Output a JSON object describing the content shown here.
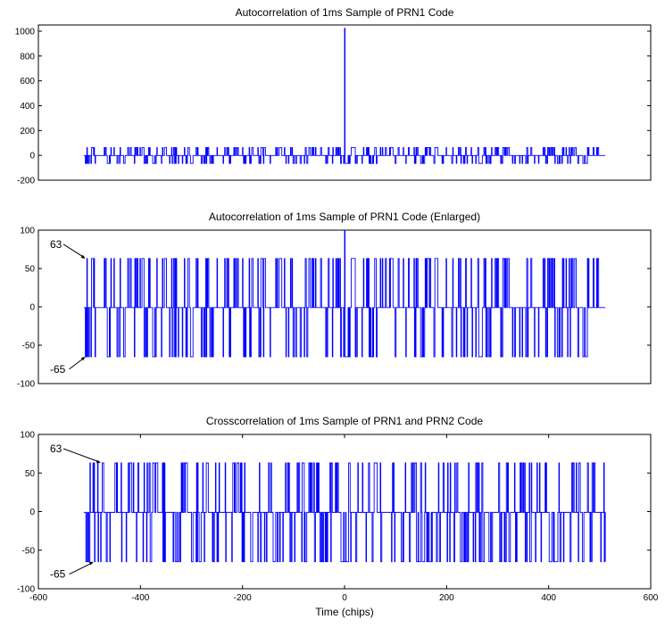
{
  "chart_data": [
    {
      "type": "line",
      "title": "Autocorrelation of 1ms Sample of PRN1 Code",
      "xlabel": "",
      "ylabel": "",
      "xlim": [
        -600,
        600
      ],
      "ylim": [
        -200,
        1050
      ],
      "yticks": [
        -200,
        0,
        200,
        400,
        600,
        800,
        1000
      ],
      "xticks": [],
      "series": [
        {
          "color": "#0000ff",
          "x_range": [
            -511,
            511
          ],
          "peak": {
            "x": 0,
            "y": 1023
          },
          "levels": [
            63,
            -1,
            -65
          ]
        }
      ],
      "annotations": []
    },
    {
      "type": "line",
      "title": "Autocorrelation of 1ms Sample of PRN1 Code (Enlarged)",
      "xlabel": "",
      "ylabel": "",
      "xlim": [
        -600,
        600
      ],
      "ylim": [
        -100,
        100
      ],
      "yticks": [
        -100,
        -50,
        0,
        50,
        100
      ],
      "xticks": [],
      "series": [
        {
          "color": "#0000ff",
          "x_range": [
            -511,
            511
          ],
          "peak": {
            "x": 0,
            "y": 1023
          },
          "levels": [
            63,
            -1,
            -65
          ]
        }
      ],
      "annotations": [
        {
          "text": "63",
          "x": -508,
          "y": 63
        },
        {
          "text": "-65",
          "x": -508,
          "y": -65
        }
      ]
    },
    {
      "type": "line",
      "title": "Crosscorrelation of 1ms Sample of PRN1 and PRN2 Code",
      "xlabel": "Time (chips)",
      "ylabel": "",
      "xlim": [
        -600,
        600
      ],
      "ylim": [
        -100,
        100
      ],
      "yticks": [
        -100,
        -50,
        0,
        50,
        100
      ],
      "xticks": [
        -600,
        -400,
        -200,
        0,
        200,
        400,
        600
      ],
      "series": [
        {
          "color": "#0000ff",
          "x_range": [
            -511,
            511
          ],
          "levels": [
            63,
            -1,
            -65
          ]
        }
      ],
      "annotations": [
        {
          "text": "63",
          "x": -478,
          "y": 63
        },
        {
          "text": "-65",
          "x": -492,
          "y": -65
        }
      ]
    }
  ]
}
